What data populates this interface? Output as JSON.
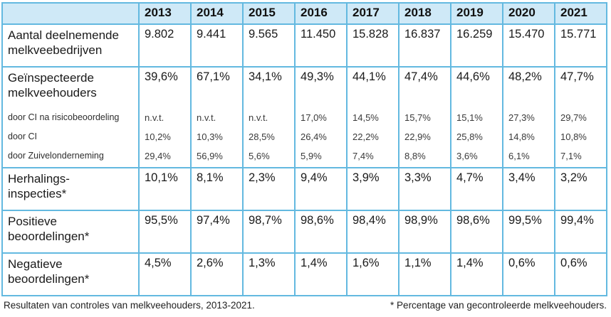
{
  "chart_data": {
    "type": "table",
    "title": "Resultaten van controles van melkveehouders, 2013-2021.",
    "footnote": "* Percentage van gecontroleerde melkveehouders.",
    "categories": [
      "2013",
      "2014",
      "2015",
      "2016",
      "2017",
      "2018",
      "2019",
      "2020",
      "2021"
    ],
    "series": [
      {
        "name": "Aantal deelnemende melkveebedrijven",
        "unit": "count",
        "values": [
          9802,
          9441,
          9565,
          11450,
          15828,
          16837,
          16259,
          15470,
          15771
        ]
      },
      {
        "name": "Geïnspecteerde melkveehouders",
        "unit": "%",
        "values": [
          39.6,
          67.1,
          34.1,
          49.3,
          44.1,
          47.4,
          44.6,
          48.2,
          47.7
        ]
      },
      {
        "name": "door CI na risicobeoordeling",
        "unit": "%",
        "values": [
          null,
          null,
          null,
          17.0,
          14.5,
          15.7,
          15.1,
          27.3,
          29.7
        ]
      },
      {
        "name": "door CI",
        "unit": "%",
        "values": [
          10.2,
          10.3,
          28.5,
          26.4,
          22.2,
          22.9,
          25.8,
          14.8,
          10.8
        ]
      },
      {
        "name": "door Zuivelonderneming",
        "unit": "%",
        "values": [
          29.4,
          56.9,
          5.6,
          5.9,
          7.4,
          8.8,
          3.6,
          6.1,
          7.1
        ]
      },
      {
        "name": "Herhalingsinspecties*",
        "unit": "%",
        "values": [
          10.1,
          8.1,
          2.3,
          9.4,
          3.9,
          3.3,
          4.7,
          3.4,
          3.2
        ]
      },
      {
        "name": "Positieve beoordelingen*",
        "unit": "%",
        "values": [
          95.5,
          97.4,
          98.7,
          98.6,
          98.4,
          98.9,
          98.6,
          99.5,
          99.4
        ]
      },
      {
        "name": "Negatieve beoordelingen*",
        "unit": "%",
        "values": [
          4.5,
          2.6,
          1.3,
          1.4,
          1.6,
          1.1,
          1.4,
          0.6,
          0.6
        ]
      }
    ]
  },
  "table": {
    "year_headers": [
      "2013",
      "2014",
      "2015",
      "2016",
      "2017",
      "2018",
      "2019",
      "2020",
      "2021"
    ],
    "rows": {
      "aantal": {
        "label": "Aantal deelnemende\nmelkveebedrijven",
        "values": [
          "9.802",
          "9.441",
          "9.565",
          "11.450",
          "15.828",
          "16.837",
          "16.259",
          "15.470",
          "15.771"
        ]
      },
      "geinspecteerd": {
        "label": "Geïnspecteerde\nmelkveehouders",
        "values": [
          "39,6%",
          "67,1%",
          "34,1%",
          "49,3%",
          "44,1%",
          "47,4%",
          "44,6%",
          "48,2%",
          "47,7%"
        ]
      },
      "sub_risico": {
        "label": "door CI na risicobeoordeling",
        "values": [
          "n.v.t.",
          "n.v.t.",
          "n.v.t.",
          "17,0%",
          "14,5%",
          "15,7%",
          "15,1%",
          "27,3%",
          "29,7%"
        ]
      },
      "sub_ci": {
        "label": "door CI",
        "values": [
          "10,2%",
          "10,3%",
          "28,5%",
          "26,4%",
          "22,2%",
          "22,9%",
          "25,8%",
          "14,8%",
          "10,8%"
        ]
      },
      "sub_zuivel": {
        "label": "door Zuivelonderneming",
        "values": [
          "29,4%",
          "56,9%",
          "5,6%",
          "5,9%",
          "7,4%",
          "8,8%",
          "3,6%",
          "6,1%",
          "7,1%"
        ]
      },
      "herhaling": {
        "label": "Herhalings-\ninspecties*",
        "values": [
          "10,1%",
          "8,1%",
          "2,3%",
          "9,4%",
          "3,9%",
          "3,3%",
          "4,7%",
          "3,4%",
          "3,2%"
        ]
      },
      "positief": {
        "label": "Positieve\nbeoordelingen*",
        "values": [
          "95,5%",
          "97,4%",
          "98,7%",
          "98,6%",
          "98,4%",
          "98,9%",
          "98,6%",
          "99,5%",
          "99,4%"
        ]
      },
      "negatief": {
        "label": "Negatieve\nbeoordelingen*",
        "values": [
          "4,5%",
          "2,6%",
          "1,3%",
          "1,4%",
          "1,6%",
          "1,1%",
          "1,4%",
          "0,6%",
          "0,6%"
        ]
      }
    }
  },
  "captions": {
    "left": "Resultaten van controles van melkveehouders, 2013-2021.",
    "right": "* Percentage van gecontroleerde melkveehouders."
  },
  "colors": {
    "grid_border": "#63b9e0",
    "header_background": "#cfe9f7"
  }
}
